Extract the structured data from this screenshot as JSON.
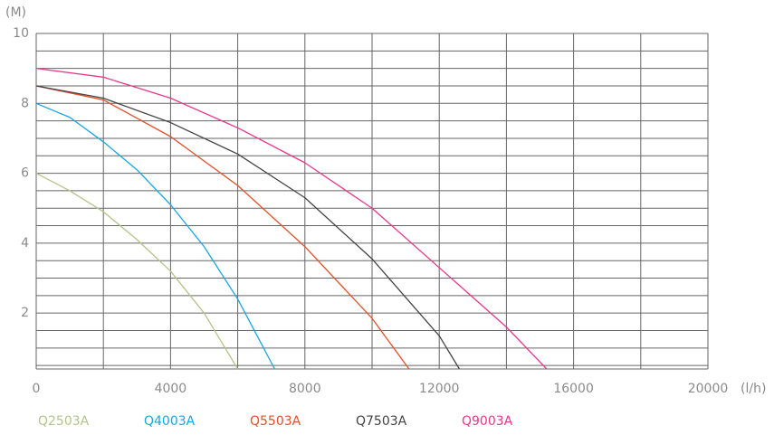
{
  "chart_data": {
    "type": "line",
    "y_unit": "(M)",
    "x_unit": "(l/h)",
    "xlim": [
      0,
      20000
    ],
    "xticks": [
      0,
      4000,
      8000,
      12000,
      16000,
      20000
    ],
    "xgrid_step": 2000,
    "ylim": [
      0.4,
      10
    ],
    "yticks": [
      2,
      4,
      6,
      8,
      10
    ],
    "ygrid_step": 0.5,
    "grid": true,
    "series": [
      {
        "name": "Q2503A",
        "color": "#b3c48a",
        "x": [
          0,
          1000,
          2000,
          3000,
          4000,
          5000,
          6000
        ],
        "values": [
          6,
          5.5,
          4.9,
          4.1,
          3.2,
          2.0,
          0.4
        ]
      },
      {
        "name": "Q4003A",
        "color": "#1aa6df",
        "x": [
          0,
          1000,
          2000,
          3000,
          4000,
          5000,
          6000,
          7100
        ],
        "values": [
          8,
          7.6,
          6.9,
          6.1,
          5.1,
          3.9,
          2.4,
          0.4
        ]
      },
      {
        "name": "Q5503A",
        "color": "#e0512b",
        "x": [
          0,
          2000,
          4000,
          6000,
          8000,
          10000,
          11100
        ],
        "values": [
          8.5,
          8.1,
          7.05,
          5.65,
          3.9,
          1.85,
          0.4
        ]
      },
      {
        "name": "Q7503A",
        "color": "#444444",
        "x": [
          0,
          2000,
          4000,
          6000,
          8000,
          10000,
          12000,
          12600
        ],
        "values": [
          8.5,
          8.15,
          7.45,
          6.55,
          5.3,
          3.55,
          1.35,
          0.4
        ]
      },
      {
        "name": "Q9003A",
        "color": "#e6398b",
        "x": [
          0,
          2000,
          4000,
          6000,
          8000,
          10000,
          12000,
          14000,
          15200
        ],
        "values": [
          9,
          8.75,
          8.15,
          7.3,
          6.3,
          5.0,
          3.3,
          1.6,
          0.4
        ]
      }
    ]
  }
}
